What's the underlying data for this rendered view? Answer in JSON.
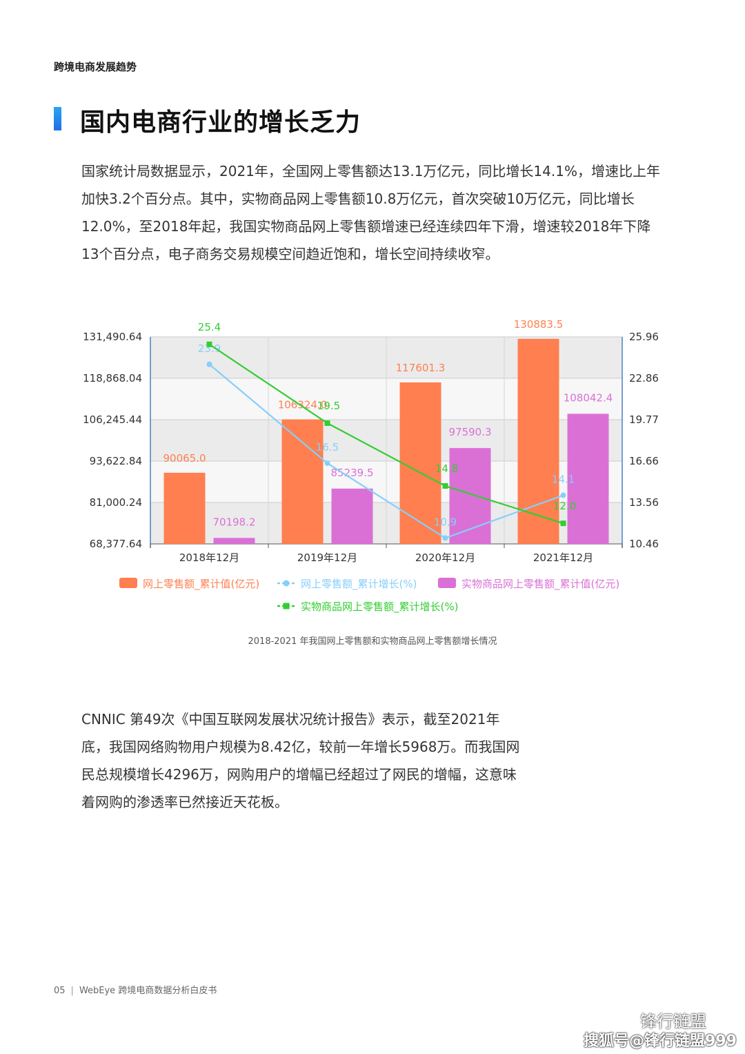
{
  "header": {
    "section_label": "跨境电商发展趋势"
  },
  "title": "国内电商行业的增长乏力",
  "paragraph1": "国家统计局数据显示，2021年，全国网上零售额达13.1万亿元，同比增长14.1%，增速比上年加快3.2个百分点。其中，实物商品网上零售额10.8万亿元，首次突破10万亿元，同比增长12.0%，至2018年起，我国实物商品网上零售额增速已经连续四年下滑，增速较2018年下降13个百分点，电子商务交易规模空间趋近饱和，增长空间持续收窄。",
  "caption": "2018-2021 年我国网上零售额和实物商品网上零售额增长情况",
  "paragraph2": "CNNIC 第49次《中国互联网发展状况统计报告》表示，截至2021年底，我国网络购物用户规模为8.42亿，较前一年增长5968万。而我国网民总规模增长4296万，网购用户的增幅已经超过了网民的增幅，这意味着网购的渗透率已然接近天花板。",
  "footer": {
    "page": "05",
    "separator": "|",
    "doc": "WebEye 跨境电商数据分析白皮书"
  },
  "watermark": {
    "line1": "锋行链盟",
    "line2": "搜狐号@锋行链盟999"
  },
  "chart_data": {
    "type": "bar",
    "categories": [
      "2018年12月",
      "2019年12月",
      "2020年12月",
      "2021年12月"
    ],
    "left_axis": {
      "ticks": [
        "68,377.64",
        "81,000.24",
        "93,622.84",
        "106,245.44",
        "118,868.04",
        "131,490.64"
      ],
      "range": [
        68377.64,
        131490.64
      ]
    },
    "right_axis": {
      "ticks": [
        "10.46",
        "13.56",
        "16.66",
        "19.77",
        "22.86",
        "25.96"
      ],
      "range": [
        10.46,
        25.96
      ]
    },
    "grid": true,
    "legend_position": "bottom",
    "series": [
      {
        "name": "网上零售额_累计值(亿元)",
        "kind": "bar",
        "axis": "left",
        "color": "#ff7f50",
        "values": [
          90065.0,
          106324.0,
          117601.3,
          130883.5
        ],
        "labels": [
          "90065.0",
          "106324.0",
          "117601.3",
          "130883.5"
        ]
      },
      {
        "name": "网上零售额_累计增长(%)",
        "kind": "line",
        "axis": "right",
        "color": "#87cefa",
        "values": [
          23.9,
          16.5,
          10.9,
          14.1
        ],
        "labels": [
          "23.9",
          "16.5",
          "10.9",
          "14.1"
        ]
      },
      {
        "name": "实物商品网上零售额_累计值(亿元)",
        "kind": "bar",
        "axis": "left",
        "color": "#da70d6",
        "values": [
          70198.2,
          85239.5,
          97590.3,
          108042.4
        ],
        "labels": [
          "70198.2",
          "85239.5",
          "97590.3",
          "108042.4"
        ]
      },
      {
        "name": "实物商品网上零售额_累计增长(%)",
        "kind": "line",
        "axis": "right",
        "color": "#32cd32",
        "values": [
          25.4,
          19.5,
          14.8,
          12.0
        ],
        "labels": [
          "25.4",
          "19.5",
          "14.8",
          "12.0"
        ]
      }
    ]
  }
}
